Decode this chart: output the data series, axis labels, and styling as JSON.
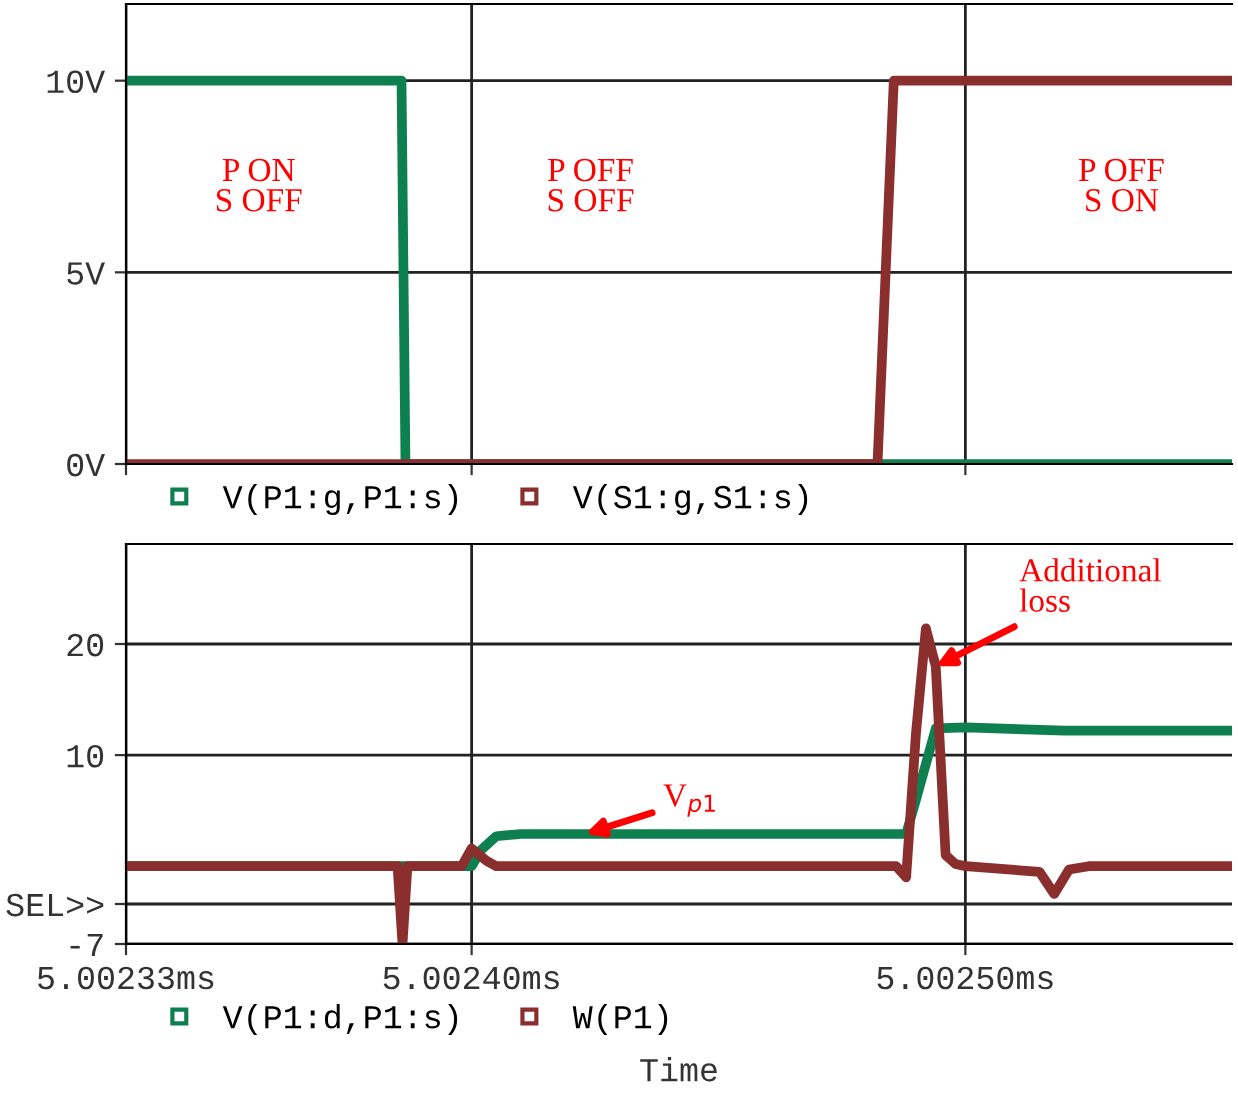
{
  "chart_data": [
    {
      "type": "line",
      "xlim": [
        5.00233,
        5.002554
      ],
      "ylim": [
        0,
        12
      ],
      "xticks": [
        {
          "value": 5.00233,
          "label": null
        },
        {
          "value": 5.0024,
          "label": null
        },
        {
          "value": 5.0025,
          "label": null
        }
      ],
      "yticks": [
        {
          "value": 0,
          "label": "0V"
        },
        {
          "value": 5,
          "label": "5V"
        },
        {
          "value": 10,
          "label": "10V"
        }
      ],
      "tick_labels": "y",
      "grid": true,
      "legend": "bottom",
      "line_style": "solid",
      "series": [
        {
          "name": "V(P1:g,P1:s)",
          "color": "#0e8050",
          "x": [
            5.00233,
            5.0023858,
            5.0023866,
            5.002554
          ],
          "values": [
            10,
            10,
            0,
            0
          ]
        },
        {
          "name": "V(S1:g,S1:s)",
          "color": "#8b2e2e",
          "x": [
            5.00233,
            5.0024822,
            5.0024855,
            5.002554
          ],
          "values": [
            0,
            0,
            10,
            10
          ]
        }
      ],
      "annotations": [
        "P ON\nS OFF",
        "P OFF\nS OFF",
        "P OFF\nS ON"
      ]
    },
    {
      "type": "line",
      "xlim": [
        5.00233,
        5.002554
      ],
      "ylim": [
        -7,
        29
      ],
      "xticks": [
        {
          "value": 5.00233,
          "label": "5.00233ms"
        },
        {
          "value": 5.0024,
          "label": "5.00240ms"
        },
        {
          "value": 5.0025,
          "label": "5.00250ms"
        }
      ],
      "yticks": [
        -7,
        {
          "value": -3.4,
          "label": "SEL>>"
        },
        10,
        20
      ],
      "xlabel": "Time",
      "grid": true,
      "legend": "bottom",
      "line_style": "solid",
      "series": [
        {
          "name": "V(P1:d,P1:s)",
          "color": "#0e8050",
          "x": [
            5.00233,
            5.0024,
            5.002402,
            5.002405,
            5.00241,
            5.00245,
            5.002488,
            5.00249,
            5.002494,
            5.0025,
            5.00252,
            5.002554
          ],
          "values": [
            0,
            0,
            1.5,
            2.7,
            2.9,
            2.9,
            2.9,
            6,
            12.4,
            12.5,
            12.2,
            12.2
          ]
        },
        {
          "name": "W(P1)",
          "color": "#8b2e2e",
          "x": [
            5.00233,
            5.002385,
            5.002386,
            5.002387,
            5.002398,
            5.0024,
            5.002403,
            5.002405,
            5.00247,
            5.002486,
            5.002488,
            5.00249,
            5.002492,
            5.002494,
            5.002496,
            5.002498,
            5.0025,
            5.002515,
            5.002518,
            5.002521,
            5.002525,
            5.002554
          ],
          "values": [
            0,
            0,
            -7,
            0,
            0,
            1.6,
            0.5,
            0,
            0,
            0,
            -1,
            12,
            21.4,
            18,
            1,
            0.2,
            0,
            -0.5,
            -2.5,
            -0.3,
            0,
            0
          ]
        }
      ],
      "annotations": [
        {
          "text": "V$_{p1}$",
          "x": 5.002423,
          "y": 2.9
        },
        {
          "text": "Additional\nloss",
          "x": 5.002494,
          "y": 18
        }
      ]
    }
  ]
}
